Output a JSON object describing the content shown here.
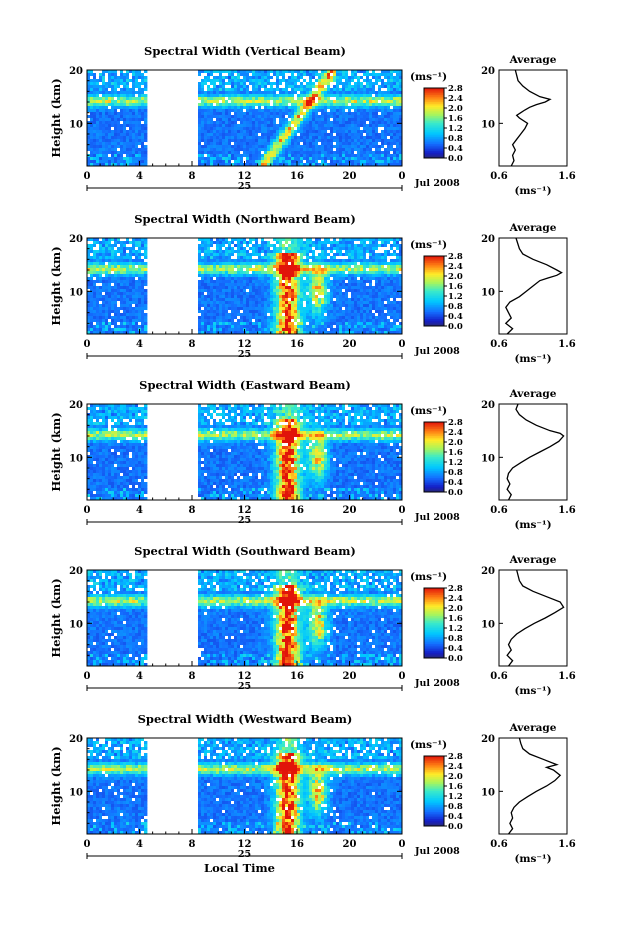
{
  "chart_data": [
    {
      "type": "heatmap",
      "title": "Spectral Width (Vertical Beam)",
      "ylabel": "Height (km)",
      "ylim": [
        2,
        20
      ],
      "yticks": [
        "20",
        "10"
      ],
      "xticks": [
        "0",
        "4",
        "8",
        "12",
        "16",
        "20",
        "0"
      ],
      "xlim": [
        0,
        24
      ],
      "date_day": "25",
      "date_label": "Jul 2008",
      "data_gap_hours": [
        4.5,
        8.5
      ],
      "colorbar": {
        "unit": "(ms⁻¹)",
        "ticks": [
          "2.8",
          "2.4",
          "2.0",
          "1.6",
          "1.2",
          "0.8",
          "0.4",
          "0.0"
        ],
        "range": [
          0.0,
          2.8
        ]
      },
      "average_profile": {
        "title": "Average",
        "xlabel": "(ms⁻¹)",
        "xticks": [
          "0.6",
          "1.6"
        ],
        "yticks": [
          "20",
          "10"
        ],
        "x": [
          0.78,
          0.82,
          0.8,
          0.84,
          0.8,
          0.86,
          0.92,
          0.98,
          1.02,
          0.9,
          0.86,
          0.92,
          0.98,
          1.05,
          1.15,
          1.28,
          1.35,
          1.2,
          1.05,
          0.95,
          0.88,
          0.86,
          0.84
        ],
        "height_km": [
          2,
          3,
          4,
          5,
          6,
          7,
          8,
          9,
          10,
          11,
          11.5,
          12,
          12.5,
          13,
          13.5,
          14,
          14.5,
          15,
          16,
          17,
          18,
          19,
          20
        ]
      }
    },
    {
      "type": "heatmap",
      "title": "Spectral Width (Northward Beam)",
      "ylabel": "Height (km)",
      "ylim": [
        2,
        20
      ],
      "yticks": [
        "20",
        "10"
      ],
      "xticks": [
        "0",
        "4",
        "8",
        "12",
        "16",
        "20",
        "0"
      ],
      "xlim": [
        0,
        24
      ],
      "date_day": "25",
      "date_label": "Jul 2008",
      "data_gap_hours": [
        4.5,
        8.5
      ],
      "colorbar": {
        "unit": "(ms⁻¹)",
        "ticks": [
          "2.8",
          "2.4",
          "2.0",
          "1.6",
          "1.2",
          "0.8",
          "0.4",
          "0.0"
        ],
        "range": [
          0.0,
          2.8
        ]
      },
      "average_profile": {
        "title": "Average",
        "xlabel": "(ms⁻¹)",
        "xticks": [
          "0.6",
          "1.6"
        ],
        "yticks": [
          "20",
          "10"
        ],
        "x": [
          0.72,
          0.8,
          0.7,
          0.78,
          0.74,
          0.7,
          0.76,
          0.9,
          1.0,
          1.1,
          1.2,
          1.32,
          1.45,
          1.52,
          1.45,
          1.3,
          1.1,
          0.95,
          0.9,
          0.85
        ],
        "height_km": [
          2,
          3,
          4,
          5,
          6,
          7,
          8,
          9,
          10,
          11,
          12,
          12.5,
          13,
          13.5,
          14,
          15,
          16,
          17,
          18,
          20
        ]
      }
    },
    {
      "type": "heatmap",
      "title": "Spectral Width (Eastward Beam)",
      "ylabel": "Height (km)",
      "ylim": [
        2,
        20
      ],
      "yticks": [
        "20",
        "10"
      ],
      "xticks": [
        "0",
        "4",
        "8",
        "12",
        "16",
        "20",
        "0"
      ],
      "xlim": [
        0,
        24
      ],
      "date_day": "25",
      "date_label": "Jul 2008",
      "data_gap_hours": [
        4.5,
        8.5
      ],
      "colorbar": {
        "unit": "(ms⁻¹)",
        "ticks": [
          "2.8",
          "2.4",
          "2.0",
          "1.6",
          "1.2",
          "0.8",
          "0.4",
          "0.0"
        ],
        "range": [
          0.0,
          2.8
        ]
      },
      "average_profile": {
        "title": "Average",
        "xlabel": "(ms⁻¹)",
        "xticks": [
          "0.6",
          "1.6"
        ],
        "yticks": [
          "20",
          "10"
        ],
        "x": [
          0.74,
          0.78,
          0.72,
          0.76,
          0.72,
          0.74,
          0.8,
          0.92,
          1.05,
          1.2,
          1.35,
          1.48,
          1.55,
          1.5,
          1.35,
          1.15,
          1.0,
          0.9,
          0.85,
          0.88
        ],
        "height_km": [
          2,
          3,
          4,
          5,
          6,
          7,
          8,
          9,
          10,
          11,
          12,
          13,
          14,
          14.5,
          15,
          16,
          17,
          18,
          19,
          20
        ]
      }
    },
    {
      "type": "heatmap",
      "title": "Spectral Width (Southward Beam)",
      "ylabel": "Height (km)",
      "ylim": [
        2,
        20
      ],
      "yticks": [
        "20",
        "10"
      ],
      "xticks": [
        "0",
        "4",
        "8",
        "12",
        "16",
        "20",
        "0"
      ],
      "xlim": [
        0,
        24
      ],
      "date_day": "25",
      "date_label": "Jul 2008",
      "data_gap_hours": [
        4.5,
        8.5
      ],
      "colorbar": {
        "unit": "(ms⁻¹)",
        "ticks": [
          "2.8",
          "2.4",
          "2.0",
          "1.6",
          "1.2",
          "0.8",
          "0.4",
          "0.0"
        ],
        "range": [
          0.0,
          2.8
        ]
      },
      "average_profile": {
        "title": "Average",
        "xlabel": "(ms⁻¹)",
        "xticks": [
          "0.6",
          "1.6"
        ],
        "yticks": [
          "20",
          "10"
        ],
        "x": [
          0.74,
          0.8,
          0.72,
          0.78,
          0.74,
          0.78,
          0.86,
          0.98,
          1.12,
          1.28,
          1.42,
          1.55,
          1.5,
          1.3,
          1.1,
          0.95,
          0.9,
          0.86
        ],
        "height_km": [
          2,
          3,
          4,
          5,
          6,
          7,
          8,
          9,
          10,
          11,
          12,
          13,
          14,
          15,
          16,
          17,
          18,
          20
        ]
      }
    },
    {
      "type": "heatmap",
      "title": "Spectral Width (Westward Beam)",
      "ylabel": "Height (km)",
      "ylim": [
        2,
        20
      ],
      "yticks": [
        "20",
        "10"
      ],
      "xticks": [
        "0",
        "4",
        "8",
        "12",
        "16",
        "20",
        "0"
      ],
      "xlim": [
        0,
        24
      ],
      "date_day": "25",
      "date_label": "Jul 2008",
      "xlabel": "Local Time",
      "data_gap_hours": [
        4.5,
        8.5
      ],
      "colorbar": {
        "unit": "(ms⁻¹)",
        "ticks": [
          "2.8",
          "2.4",
          "2.0",
          "1.6",
          "1.2",
          "0.8",
          "0.4",
          "0.0"
        ],
        "range": [
          0.0,
          2.8
        ]
      },
      "average_profile": {
        "title": "Average",
        "xlabel": "(ms⁻¹)",
        "xticks": [
          "0.6",
          "1.6"
        ],
        "yticks": [
          "20",
          "10"
        ],
        "x": [
          0.74,
          0.8,
          0.76,
          0.8,
          0.78,
          0.82,
          0.9,
          1.02,
          1.15,
          1.3,
          1.42,
          1.5,
          1.4,
          1.3,
          1.45,
          1.25,
          1.05,
          0.95,
          0.92,
          0.9
        ],
        "height_km": [
          2,
          3,
          4,
          5,
          6,
          7,
          8,
          9,
          10,
          11,
          12,
          13,
          14,
          14.5,
          15,
          16,
          17,
          18,
          19,
          20
        ]
      }
    }
  ]
}
